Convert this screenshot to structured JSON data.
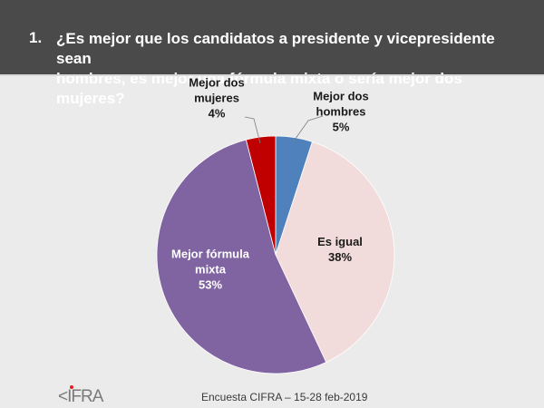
{
  "header": {
    "number": "1.",
    "question_line1": "¿Es mejor que los candidatos a presidente y vicepresidente sean",
    "question_line2": "hombres, es mejor una fórmula mixta o sería mejor dos mujeres?"
  },
  "footer": {
    "logo": "<IFRA",
    "source": "Encuesta CIFRA – 15-28 feb-2019"
  },
  "chart_data": {
    "type": "pie",
    "title": "¿Es mejor que los candidatos a presidente y vicepresidente sean hombres, es mejor una fórmula mixta o sería mejor dos mujeres?",
    "start": "12 o'clock, clockwise",
    "slices": [
      {
        "label": "Mejor dos hombres",
        "label_lines": [
          "Mejor dos",
          "hombres"
        ],
        "value": 5,
        "display": "5%",
        "color": "#4f81bd",
        "text_color": "#1a1a1a"
      },
      {
        "label": "Es igual",
        "label_lines": [
          "Es igual"
        ],
        "value": 38,
        "display": "38%",
        "color": "#f2dcdb",
        "text_color": "#1a1a1a"
      },
      {
        "label": "Mejor fórmula mixta",
        "label_lines": [
          "Mejor fórmula",
          "mixta"
        ],
        "value": 53,
        "display": "53%",
        "color": "#8064a2",
        "text_color": "#ffffff"
      },
      {
        "label": "Mejor dos mujeres",
        "label_lines": [
          "Mejor dos",
          "mujeres"
        ],
        "value": 4,
        "display": "4%",
        "color": "#c00000",
        "text_color": "#1a1a1a"
      }
    ],
    "legend": "none"
  }
}
